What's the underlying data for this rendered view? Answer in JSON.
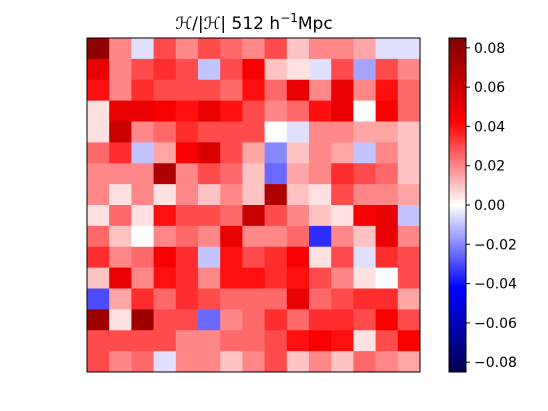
{
  "chart_data": {
    "type": "heatmap",
    "title_parts": [
      "ℋ/|ℋ| 512 h",
      "−1",
      "Mpc"
    ],
    "xlabel": "",
    "ylabel": "",
    "rows": 16,
    "cols": 15,
    "colormap": "seismic",
    "vmin": -0.085,
    "vmax": 0.085,
    "colorbar": {
      "ticks": [
        0.08,
        0.06,
        0.04,
        0.02,
        0.0,
        -0.02,
        -0.04,
        -0.06,
        -0.08
      ],
      "tick_labels": [
        "0.08",
        "0.06",
        "0.04",
        "0.02",
        "0.00",
        "−0.02",
        "−0.04",
        "−0.06",
        "−0.08"
      ]
    },
    "values": [
      [
        0.08,
        0.02,
        -0.005,
        0.03,
        0.02,
        0.03,
        0.025,
        0.02,
        0.03,
        0.01,
        0.02,
        0.02,
        0.015,
        -0.005,
        -0.005
      ],
      [
        0.05,
        0.02,
        0.03,
        0.035,
        0.03,
        -0.01,
        0.03,
        0.045,
        0.01,
        0.005,
        -0.005,
        0.03,
        -0.015,
        0.03,
        0.02
      ],
      [
        0.04,
        0.02,
        0.035,
        0.03,
        0.03,
        0.03,
        0.025,
        0.04,
        0.025,
        0.05,
        0.02,
        0.05,
        0.02,
        0.04,
        0.025
      ],
      [
        0.005,
        0.05,
        0.05,
        0.045,
        0.04,
        0.05,
        0.04,
        0.03,
        0.02,
        0.025,
        0.04,
        0.05,
        0.0,
        0.045,
        0.025
      ],
      [
        0.005,
        0.06,
        0.02,
        0.025,
        0.035,
        0.03,
        0.03,
        0.03,
        0.0,
        -0.005,
        0.02,
        0.02,
        0.015,
        0.015,
        0.01
      ],
      [
        0.025,
        0.035,
        -0.01,
        0.015,
        0.045,
        0.055,
        0.03,
        0.015,
        -0.02,
        0.01,
        0.02,
        0.015,
        -0.01,
        0.02,
        0.01
      ],
      [
        0.02,
        0.02,
        0.02,
        0.07,
        0.02,
        0.03,
        0.025,
        0.01,
        -0.025,
        0.015,
        0.02,
        0.035,
        0.03,
        0.025,
        0.01
      ],
      [
        0.02,
        0.005,
        0.02,
        0.005,
        0.02,
        0.01,
        0.02,
        0.01,
        0.07,
        0.01,
        0.005,
        0.03,
        0.02,
        0.02,
        0.015
      ],
      [
        0.005,
        0.025,
        0.005,
        0.04,
        0.03,
        0.03,
        0.025,
        0.06,
        0.03,
        0.02,
        0.01,
        0.005,
        0.045,
        0.05,
        -0.01
      ],
      [
        0.025,
        0.01,
        0.0,
        0.02,
        0.025,
        0.02,
        0.05,
        0.02,
        0.02,
        0.025,
        -0.035,
        0.02,
        0.01,
        0.05,
        0.02
      ],
      [
        0.035,
        0.02,
        0.025,
        0.045,
        0.035,
        -0.01,
        0.04,
        0.03,
        0.035,
        0.045,
        0.005,
        0.03,
        -0.005,
        0.035,
        0.03
      ],
      [
        0.01,
        0.05,
        0.02,
        0.04,
        0.035,
        0.02,
        0.04,
        0.04,
        0.035,
        0.04,
        0.03,
        0.02,
        0.005,
        0.0,
        0.03
      ],
      [
        -0.03,
        0.015,
        0.035,
        0.025,
        0.035,
        0.03,
        0.025,
        0.025,
        0.025,
        0.05,
        0.025,
        0.03,
        0.035,
        0.035,
        0.015
      ],
      [
        0.075,
        0.005,
        0.075,
        0.03,
        0.03,
        -0.025,
        0.02,
        0.025,
        0.035,
        0.025,
        0.035,
        0.035,
        0.03,
        0.045,
        0.03
      ],
      [
        0.03,
        0.03,
        0.03,
        0.03,
        0.02,
        0.02,
        0.025,
        0.025,
        0.03,
        0.04,
        0.045,
        0.04,
        0.005,
        0.03,
        0.045
      ],
      [
        0.03,
        0.02,
        0.025,
        -0.005,
        0.02,
        0.02,
        0.01,
        0.02,
        0.03,
        0.01,
        0.02,
        0.01,
        0.025,
        0.02,
        0.015
      ]
    ]
  }
}
